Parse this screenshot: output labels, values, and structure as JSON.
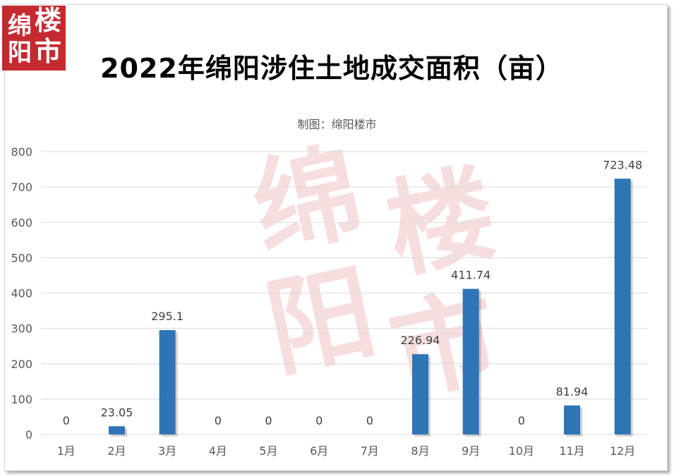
{
  "header": {
    "logo_chars": [
      "绵",
      "楼",
      "阳",
      "市"
    ],
    "title": "2022年绵阳涉住土地成交面积（亩）",
    "subtitle": "制图：绵阳楼市"
  },
  "watermark": {
    "chars": [
      "绵",
      "楼",
      "阳",
      "市"
    ]
  },
  "colors": {
    "bar": "#2e75b6",
    "gridline": "#d9d9d9",
    "logo": "#c62a31"
  },
  "chart_data": {
    "type": "bar",
    "title": "2022年绵阳涉住土地成交面积（亩）",
    "subtitle": "制图：绵阳楼市",
    "categories": [
      "1月",
      "2月",
      "3月",
      "4月",
      "5月",
      "6月",
      "7月",
      "8月",
      "9月",
      "10月",
      "11月",
      "12月"
    ],
    "values": [
      0,
      23.05,
      295.1,
      0,
      0,
      0,
      0,
      226.94,
      411.74,
      0,
      81.94,
      723.48
    ],
    "data_labels": [
      "0",
      "23.05",
      "295.1",
      "0",
      "0",
      "0",
      "0",
      "226.94",
      "411.74",
      "0",
      "81.94",
      "723.48"
    ],
    "yticks": [
      "0",
      "100",
      "200",
      "300",
      "400",
      "500",
      "600",
      "700",
      "800"
    ],
    "ylim": [
      0,
      800
    ],
    "grid": true,
    "legend": "none",
    "xlabel": "",
    "ylabel": ""
  }
}
